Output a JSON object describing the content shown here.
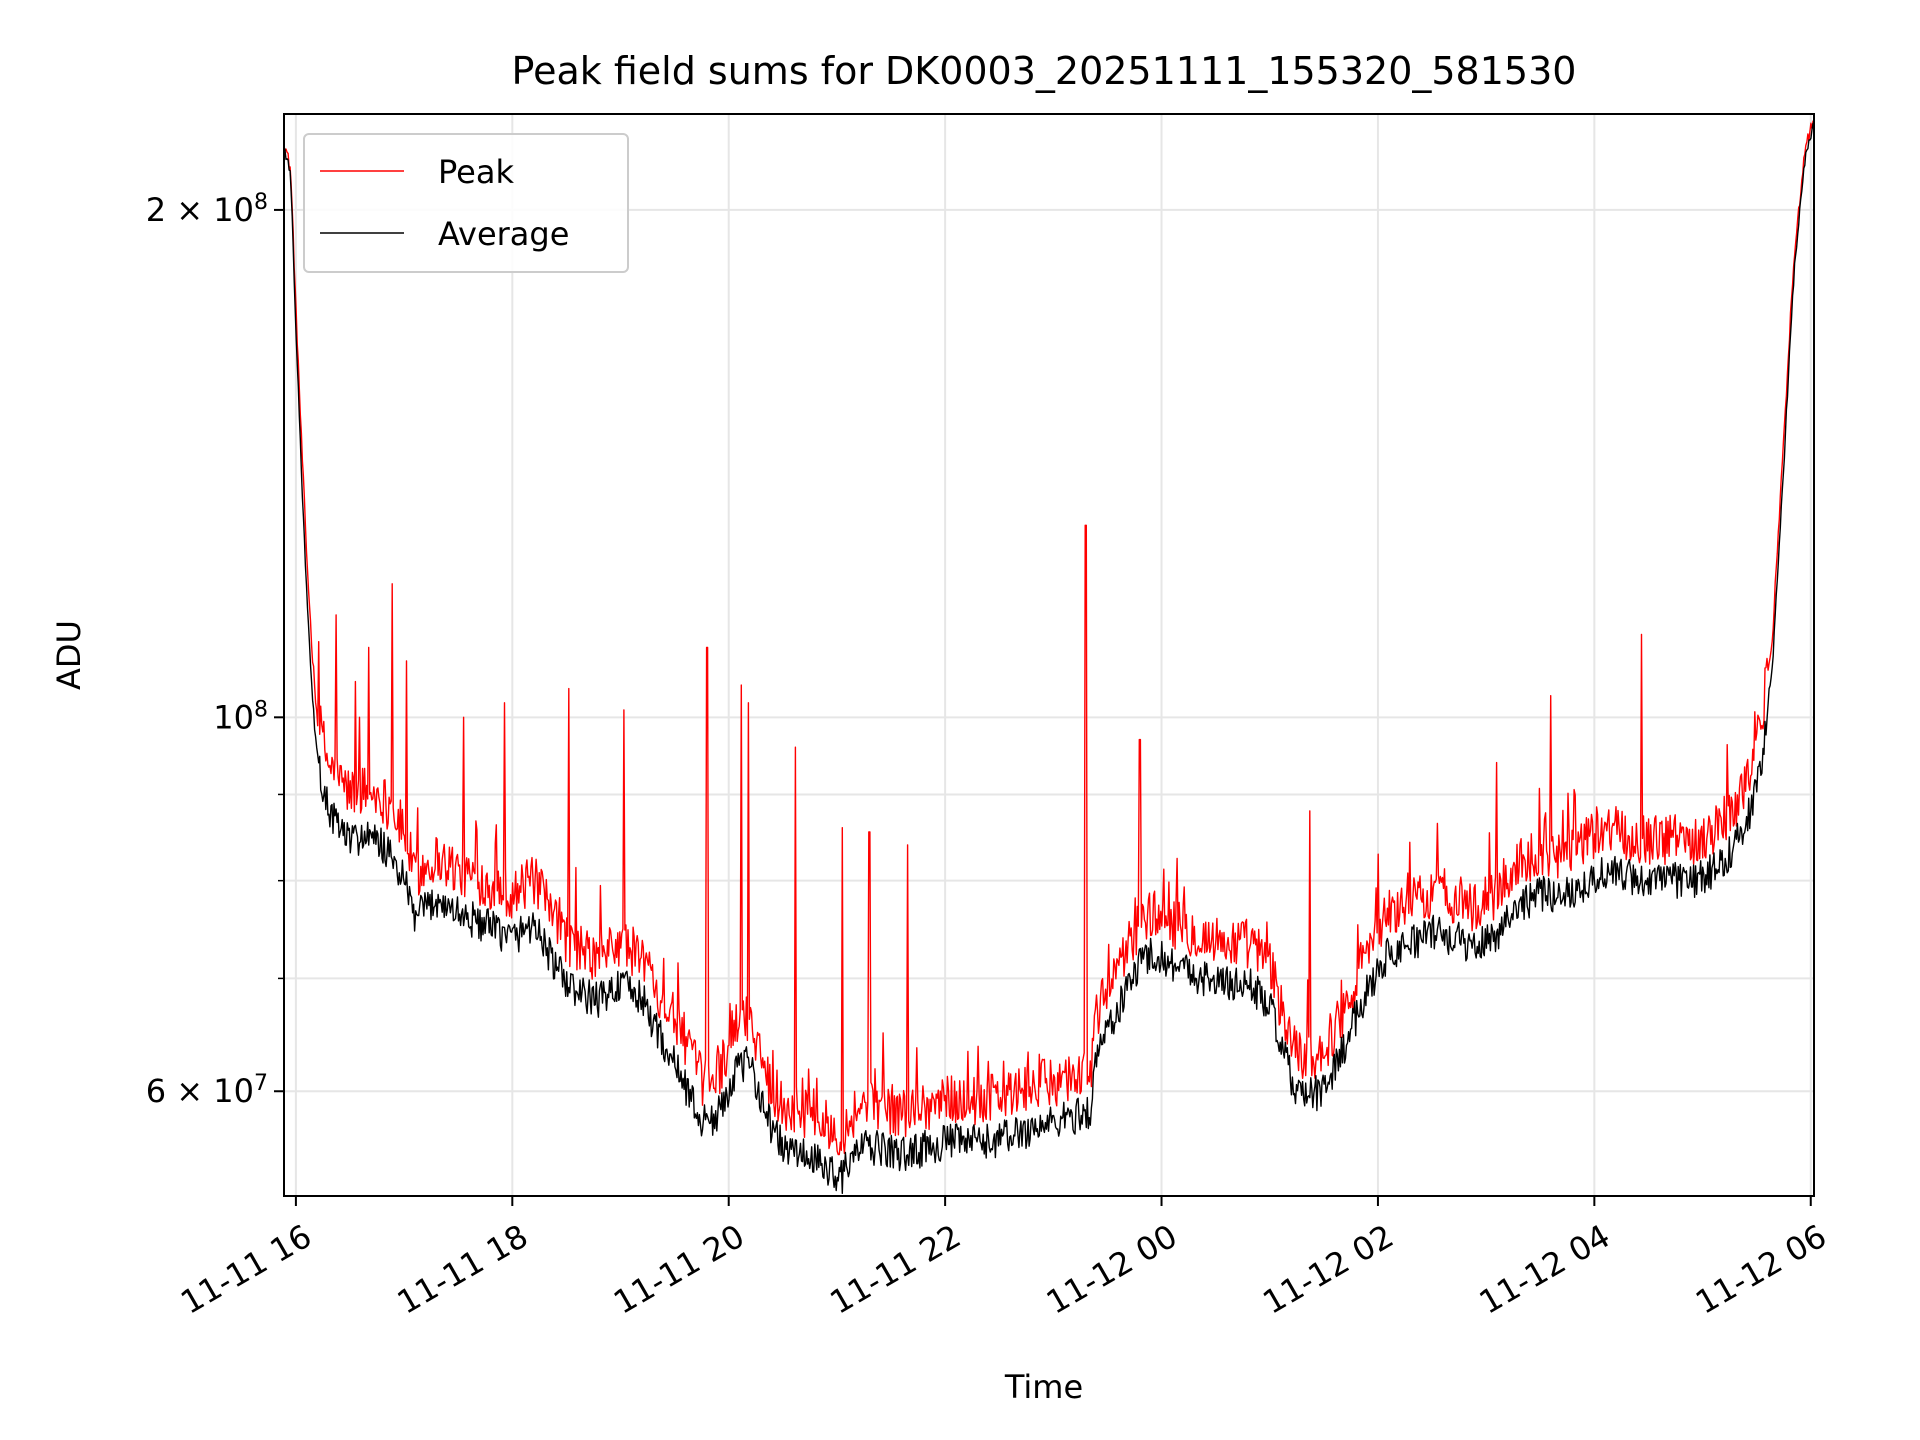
{
  "chart_data": {
    "type": "line",
    "title": "Peak field sums for DK0003_20251111_155320_581530",
    "xlabel": "Time",
    "ylabel": "ADU",
    "y_scale": "log",
    "x_unit": "hours since 2025-11-11 00:00",
    "xlim": [
      15.89,
      30.03
    ],
    "ylim": [
      52000000,
      228000000
    ],
    "x_ticks": [
      {
        "x": 16,
        "label": "11-11 16"
      },
      {
        "x": 18,
        "label": "11-11 18"
      },
      {
        "x": 20,
        "label": "11-11 20"
      },
      {
        "x": 22,
        "label": "11-11 22"
      },
      {
        "x": 24,
        "label": "11-12 00"
      },
      {
        "x": 26,
        "label": "11-12 02"
      },
      {
        "x": 28,
        "label": "11-12 04"
      },
      {
        "x": 30,
        "label": "11-12 06"
      }
    ],
    "y_major_ticks": [
      {
        "y": 60000000,
        "base": "6",
        "sup": "7"
      },
      {
        "y": 100000000,
        "base": "10",
        "sup": "8"
      },
      {
        "y": 200000000,
        "base": "2",
        "sup": "8"
      }
    ],
    "y_minor_ticks": [
      70000000,
      80000000,
      90000000
    ],
    "grid": true,
    "legend": {
      "placement": "top-left",
      "entries": [
        "Peak",
        "Average"
      ]
    },
    "colors": {
      "Peak": "#ff0000",
      "Average": "#000000",
      "grid": "#e6e6e6",
      "axis": "#000000"
    },
    "series": [
      {
        "name": "Average",
        "x": [
          15.89,
          15.95,
          16.0,
          16.05,
          16.1,
          16.15,
          16.2,
          16.3,
          16.4,
          16.5,
          16.6,
          16.8,
          17.0,
          17.1,
          17.3,
          17.5,
          17.8,
          18.0,
          18.2,
          18.4,
          18.6,
          18.8,
          19.0,
          19.2,
          19.4,
          19.6,
          19.75,
          19.9,
          20.05,
          20.2,
          20.35,
          20.5,
          20.7,
          20.9,
          21.05,
          21.2,
          21.4,
          21.6,
          21.8,
          22.0,
          22.2,
          22.4,
          22.6,
          22.8,
          23.0,
          23.2,
          23.35,
          23.4,
          23.5,
          23.6,
          23.7,
          23.8,
          23.9,
          24.0,
          24.2,
          24.4,
          24.6,
          24.8,
          25.0,
          25.1,
          25.2,
          25.3,
          25.5,
          25.7,
          25.9,
          26.1,
          26.3,
          26.5,
          26.7,
          26.9,
          27.1,
          27.3,
          27.5,
          27.7,
          27.9,
          28.1,
          28.3,
          28.5,
          28.7,
          28.9,
          29.1,
          29.3,
          29.45,
          29.55,
          29.65,
          29.75,
          29.85,
          29.95,
          30.03
        ],
        "y": [
          218000000,
          210000000,
          170000000,
          140000000,
          118000000,
          103000000,
          94000000,
          88000000,
          86000000,
          84500000,
          85000000,
          84000000,
          80000000,
          76000000,
          78000000,
          76500000,
          75000000,
          74000000,
          75500000,
          71000000,
          68500000,
          68000000,
          69500000,
          68000000,
          64000000,
          60500000,
          57500000,
          58000000,
          61500000,
          62500000,
          58000000,
          55500000,
          55000000,
          54000000,
          53500000,
          55500000,
          55500000,
          55000000,
          55500000,
          56000000,
          56000000,
          56000000,
          56500000,
          57000000,
          57500000,
          58000000,
          58500000,
          63000000,
          65500000,
          67000000,
          69500000,
          71500000,
          72500000,
          72000000,
          71000000,
          70000000,
          69500000,
          69500000,
          67500000,
          64000000,
          61000000,
          59500000,
          60000000,
          64000000,
          69000000,
          72500000,
          73500000,
          74500000,
          74000000,
          73000000,
          74500000,
          77500000,
          78500000,
          78500000,
          79500000,
          81000000,
          80500000,
          80000000,
          80000000,
          80000000,
          81000000,
          84000000,
          88000000,
          95000000,
          108000000,
          140000000,
          185000000,
          215000000,
          225000000
        ]
      },
      {
        "name": "Peak",
        "x": [
          15.89,
          15.95,
          16.0,
          16.05,
          16.1,
          16.15,
          16.2,
          16.3,
          16.4,
          16.5,
          16.6,
          16.8,
          17.0,
          17.1,
          17.3,
          17.5,
          17.8,
          18.0,
          18.2,
          18.4,
          18.6,
          18.8,
          19.0,
          19.2,
          19.4,
          19.6,
          19.75,
          19.9,
          20.05,
          20.2,
          20.35,
          20.5,
          20.7,
          20.9,
          21.05,
          21.2,
          21.4,
          21.6,
          21.8,
          22.0,
          22.2,
          22.4,
          22.6,
          22.8,
          23.0,
          23.2,
          23.35,
          23.4,
          23.5,
          23.6,
          23.7,
          23.8,
          23.9,
          24.0,
          24.2,
          24.4,
          24.6,
          24.8,
          25.0,
          25.1,
          25.2,
          25.3,
          25.5,
          25.7,
          25.9,
          26.1,
          26.3,
          26.5,
          26.7,
          26.9,
          27.1,
          27.3,
          27.5,
          27.7,
          27.9,
          28.1,
          28.3,
          28.5,
          28.7,
          28.9,
          29.1,
          29.3,
          29.45,
          29.55,
          29.65,
          29.75,
          29.85,
          29.95,
          30.03
        ],
        "y": [
          219000000,
          211000000,
          174000000,
          146000000,
          124000000,
          109000000,
          99000000,
          92500000,
          90500000,
          89000000,
          89500000,
          88500000,
          84500000,
          79500000,
          81500000,
          80000000,
          78500000,
          77500000,
          79000000,
          74500000,
          71500000,
          71000000,
          72500000,
          71000000,
          67000000,
          63500000,
          60000000,
          60500000,
          64500000,
          65500000,
          60500000,
          58000000,
          57500000,
          56500000,
          56000000,
          58000000,
          58000000,
          57500000,
          58000000,
          58500000,
          58500000,
          58500000,
          59000000,
          59500000,
          60000000,
          60500000,
          61000000,
          65500000,
          68000000,
          69500000,
          72500000,
          74500000,
          75500000,
          75000000,
          74000000,
          73000000,
          72500000,
          72500000,
          70500000,
          66500000,
          63500000,
          62000000,
          62500000,
          66500000,
          72000000,
          75500000,
          76500000,
          77500000,
          77000000,
          76000000,
          77500000,
          81000000,
          82000000,
          82000000,
          83000000,
          84500000,
          84000000,
          83500000,
          83500000,
          83500000,
          84500000,
          87500000,
          91500000,
          99000000,
          112000000,
          145000000,
          188000000,
          217000000,
          226000000
        ],
        "spikes": [
          {
            "x": 16.37,
            "y": 115000000
          },
          {
            "x": 16.55,
            "y": 105000000
          },
          {
            "x": 16.67,
            "y": 110000000
          },
          {
            "x": 16.89,
            "y": 120000000
          },
          {
            "x": 17.02,
            "y": 108000000
          },
          {
            "x": 17.55,
            "y": 100000000
          },
          {
            "x": 17.93,
            "y": 102000000
          },
          {
            "x": 18.52,
            "y": 104000000
          },
          {
            "x": 19.03,
            "y": 101000000
          },
          {
            "x": 19.8,
            "y": 110000000
          },
          {
            "x": 20.12,
            "y": 104500000
          },
          {
            "x": 20.18,
            "y": 102000000
          },
          {
            "x": 20.62,
            "y": 96000000
          },
          {
            "x": 21.05,
            "y": 86000000
          },
          {
            "x": 21.3,
            "y": 85500000
          },
          {
            "x": 21.65,
            "y": 84000000
          },
          {
            "x": 23.3,
            "y": 130000000
          },
          {
            "x": 23.8,
            "y": 97000000
          },
          {
            "x": 25.37,
            "y": 88000000
          },
          {
            "x": 26.55,
            "y": 86500000
          },
          {
            "x": 27.1,
            "y": 94000000
          },
          {
            "x": 27.6,
            "y": 103000000
          },
          {
            "x": 28.44,
            "y": 112000000
          }
        ]
      }
    ]
  }
}
